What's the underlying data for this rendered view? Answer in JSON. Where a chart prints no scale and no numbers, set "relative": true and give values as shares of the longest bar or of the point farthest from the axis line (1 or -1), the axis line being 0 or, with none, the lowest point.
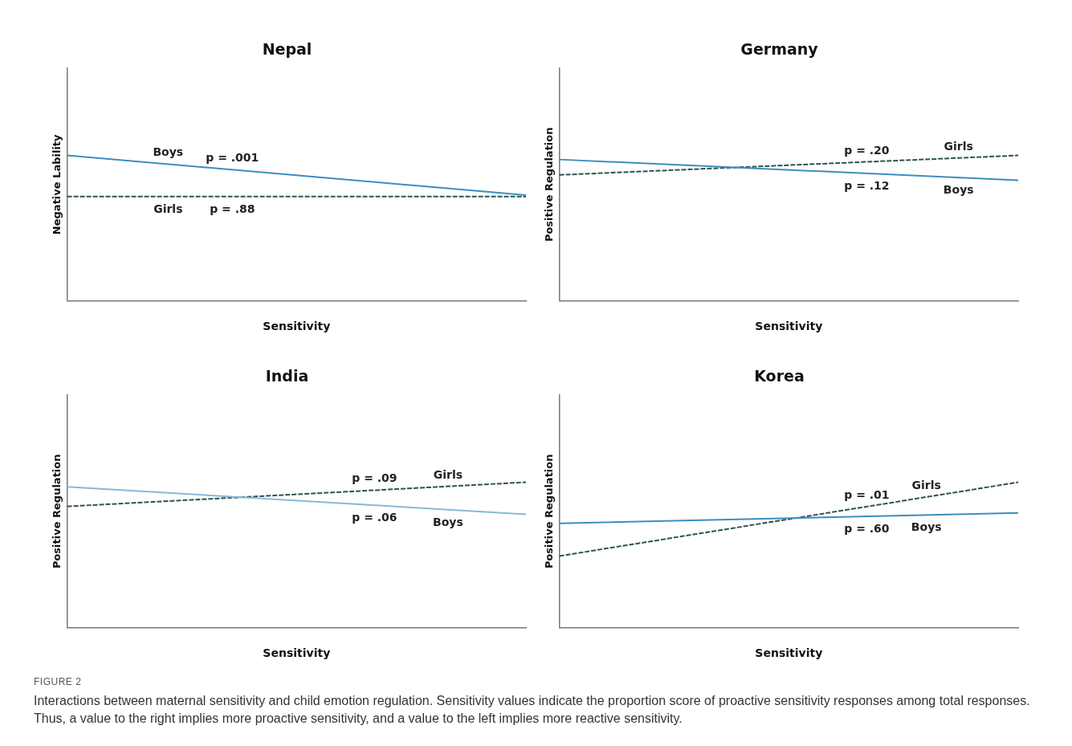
{
  "chart_data": [
    {
      "type": "line",
      "title": "Nepal",
      "xlabel": "Sensitivity",
      "ylabel": "Negative Lability",
      "relative": true,
      "categories": [
        null,
        null
      ],
      "grid": false,
      "legend": false,
      "marker": "none",
      "series": [
        {
          "name": "Boys",
          "color": "#3c8dbf",
          "line_style": "solid",
          "values": [
            1,
            0.727
          ]
        },
        {
          "name": "Girls",
          "color": "#2f5350",
          "line_style": "dashed",
          "values": [
            0.717,
            0.717
          ]
        }
      ],
      "annotations": [
        "p = .001",
        "p = .88"
      ]
    },
    {
      "type": "line",
      "title": "Germany",
      "xlabel": "Sensitivity",
      "ylabel": "Positive Regulation",
      "relative": true,
      "categories": [
        null,
        null
      ],
      "grid": false,
      "legend": false,
      "marker": "none",
      "series": [
        {
          "name": "Boys",
          "color": "#3c8dbf",
          "line_style": "solid",
          "values": [
            0.972,
            0.829
          ]
        },
        {
          "name": "Girls",
          "color": "#2f5350",
          "line_style": "dashed",
          "values": [
            0.866,
            1
          ]
        }
      ],
      "annotations": [
        "p = .12",
        "p = .20"
      ]
    },
    {
      "type": "line",
      "title": "India",
      "xlabel": "Sensitivity",
      "ylabel": "Positive Regulation",
      "relative": true,
      "categories": [
        null,
        null
      ],
      "grid": false,
      "legend": false,
      "marker": "none",
      "series": [
        {
          "name": "Boys",
          "color": "#86b9d8",
          "line_style": "solid",
          "values": [
            0.969,
            0.779
          ]
        },
        {
          "name": "Girls",
          "color": "#2f5350",
          "line_style": "dashed",
          "values": [
            0.834,
            1
          ]
        }
      ],
      "annotations": [
        "p = .06",
        "p = .09"
      ]
    },
    {
      "type": "line",
      "title": "Korea",
      "xlabel": "Sensitivity",
      "ylabel": "Positive Regulation",
      "relative": true,
      "categories": [
        null,
        null
      ],
      "grid": false,
      "legend": false,
      "marker": "none",
      "series": [
        {
          "name": "Boys",
          "color": "#3c8dbf",
          "line_style": "solid",
          "values": [
            0.718,
            0.789
          ]
        },
        {
          "name": "Girls",
          "color": "#2f5350",
          "line_style": "dashed",
          "values": [
            0.493,
            1
          ]
        }
      ],
      "annotations": [
        "p = .60",
        "p = .01"
      ]
    },
    {
      "type": "other",
      "title": "FIGURE 2",
      "annotations": [
        "Interactions between maternal sensitivity and child emotion regulation. Sensitivity values indicate the proportion score of proactive sensitivity responses among total responses. Thus, a value to the right implies more proactive sensitivity, and a value to the left implies more reactive sensitivity."
      ]
    }
  ]
}
